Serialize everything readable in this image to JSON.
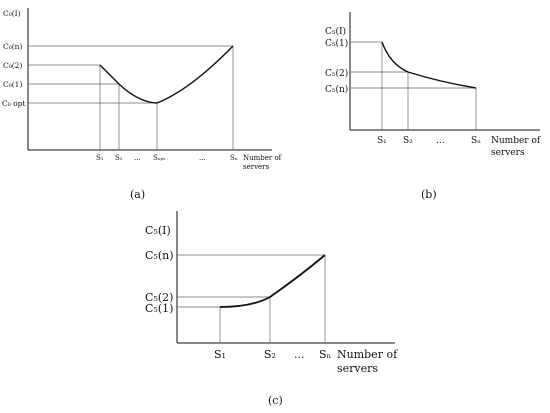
{
  "panels": {
    "a": {
      "caption": "(a)",
      "y_labels": [
        "C₀(I)",
        "C₀(n)",
        "C₀(2)",
        "C₀(1)",
        "C₀ opt"
      ],
      "x_labels": [
        "S₁",
        "S₂",
        "...",
        "Sₒₚₜ",
        "...",
        "Sₙ"
      ],
      "x_axis_title_1": "Number of",
      "x_axis_title_2": "servers"
    },
    "b": {
      "caption": "(b)",
      "y_labels": [
        "C₅(I)",
        "C₅(1)",
        "C₅(2)",
        "C₅(n)"
      ],
      "x_labels": [
        "S₁",
        "S₂",
        "...",
        "Sₙ"
      ],
      "x_axis_title_1": "Number of",
      "x_axis_title_2": "servers"
    },
    "c": {
      "caption": "(c)",
      "y_labels": [
        "C₅(I)",
        "C₅(n)",
        "C₅(2)",
        "C₅(1)"
      ],
      "x_labels": [
        "S₁",
        "S₂",
        "...",
        "Sₙ"
      ],
      "x_axis_title_1": "Number of",
      "x_axis_title_2": "servers"
    }
  }
}
